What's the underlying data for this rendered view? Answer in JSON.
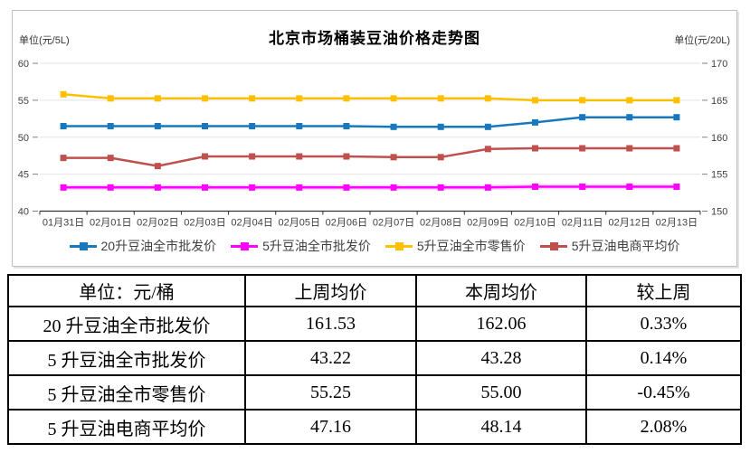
{
  "chart": {
    "title": "北京市场桶装豆油价格走势图",
    "left_axis_unit": "单位(元/5L)",
    "right_axis_unit": "单位(元/20L)"
  },
  "chart_data": {
    "type": "line",
    "title": "北京市场桶装豆油价格走势图",
    "categories": [
      "01月31日",
      "02月01日",
      "02月02日",
      "02月03日",
      "02月04日",
      "02月05日",
      "02月06日",
      "02月07日",
      "02月08日",
      "02月09日",
      "02月10日",
      "02月11日",
      "02月12日",
      "02月13日"
    ],
    "left_ylim": [
      40,
      60
    ],
    "right_ylim": [
      150,
      170
    ],
    "left_ticks": [
      60,
      55,
      50,
      45,
      40
    ],
    "right_ticks": [
      170,
      165,
      160,
      155,
      150
    ],
    "grid": true,
    "legend_position": "bottom",
    "series": [
      {
        "name": "20升豆油全市批发价",
        "axis": "right",
        "color": "#1778BE",
        "values": [
          161.5,
          161.5,
          161.5,
          161.5,
          161.5,
          161.5,
          161.5,
          161.4,
          161.4,
          161.4,
          162.0,
          162.7,
          162.7,
          162.7
        ]
      },
      {
        "name": "5升豆油全市批发价",
        "axis": "left",
        "color": "#FF00FF",
        "halo": "#FF9BFF",
        "values": [
          43.2,
          43.2,
          43.2,
          43.2,
          43.2,
          43.2,
          43.2,
          43.2,
          43.2,
          43.2,
          43.3,
          43.3,
          43.3,
          43.3
        ]
      },
      {
        "name": "5升豆油全市零售价",
        "axis": "left",
        "color": "#FFC000",
        "values": [
          55.8,
          55.25,
          55.25,
          55.25,
          55.25,
          55.25,
          55.25,
          55.25,
          55.25,
          55.25,
          55.0,
          55.0,
          55.0,
          55.0
        ]
      },
      {
        "name": "5升豆油电商平均价",
        "axis": "left",
        "color": "#C0504D",
        "values": [
          47.2,
          47.2,
          46.1,
          47.4,
          47.4,
          47.4,
          47.4,
          47.3,
          47.3,
          48.4,
          48.5,
          48.5,
          48.5,
          48.5
        ]
      }
    ],
    "legend_order": [
      0,
      1,
      2,
      3
    ]
  },
  "styles": {
    "grid_color": "#E3E3E3",
    "axis_color": "#333333",
    "tick_color": "#808080",
    "tick_label_color": "#404040",
    "date_label_color": "#404040"
  },
  "table": {
    "headers": [
      "单位：元/桶",
      "上周均价",
      "本周均价",
      "较上周"
    ],
    "rows": [
      {
        "label": "20 升豆油全市批发价",
        "last_week": "161.53",
        "this_week": "162.06",
        "change": "0.33%"
      },
      {
        "label": "5 升豆油全市批发价",
        "last_week": "43.22",
        "this_week": "43.28",
        "change": "0.14%"
      },
      {
        "label": "5 升豆油全市零售价",
        "last_week": "55.25",
        "this_week": "55.00",
        "change": "-0.45%"
      },
      {
        "label": "5 升豆油电商平均价",
        "last_week": "47.16",
        "this_week": "48.14",
        "change": "2.08%"
      }
    ]
  }
}
